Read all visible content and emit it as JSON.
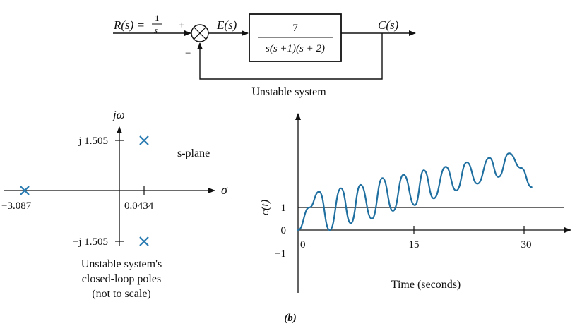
{
  "block_diagram": {
    "input_label": "R(s) =",
    "input_frac_num": "1",
    "input_frac_den": "s",
    "plus_sign": "+",
    "minus_sign": "−",
    "error_label": "E(s)",
    "tf_numerator": "7",
    "tf_denominator": "s(s +1)(s + 2)",
    "output_label": "C(s)",
    "caption": "Unstable system"
  },
  "s_plane": {
    "axis_imag_label": "jω",
    "axis_real_label": "σ",
    "plane_label": "s-plane",
    "tick_upper": "j 1.505",
    "tick_lower": "−j 1.505",
    "tick_left": "−3.087",
    "tick_right": "0.0434",
    "caption_line1": "Unstable system's",
    "caption_line2": "closed-loop poles",
    "caption_line3": "(not to scale)",
    "poles": [
      {
        "re": -3.087,
        "im": 0
      },
      {
        "re": 0.0434,
        "im": 1.505
      },
      {
        "re": 0.0434,
        "im": -1.505
      }
    ],
    "marker_color": "#2a7bb0"
  },
  "response": {
    "ylabel": "c(t)",
    "xlabel": "Time (seconds)",
    "y_ticks": [
      "1",
      "0",
      "−1"
    ],
    "x_ticks": [
      "0",
      "15",
      "30"
    ],
    "line_color": "#1f6fa0"
  },
  "figure_label": "(b)",
  "chart_data": {
    "type": "line",
    "title": "",
    "xlabel": "Time (seconds)",
    "ylabel": "c(t)",
    "xlim": [
      0,
      31
    ],
    "xticks": [
      0,
      15,
      30
    ],
    "yticks": [
      1,
      0,
      -1
    ],
    "series": [
      {
        "x": [
          0,
          1.5,
          2.8,
          4.2,
          5.7,
          7.0,
          8.3,
          9.8,
          11.2,
          12.6,
          14.0,
          15.5,
          16.7,
          18.0,
          19.6,
          21.0,
          22.4,
          23.8,
          25.4,
          26.6,
          28.0,
          29.6,
          31.0
        ],
        "y": [
          0,
          1.0,
          1.7,
          0.0,
          1.85,
          0.3,
          2.0,
          0.5,
          2.3,
          0.85,
          2.45,
          1.1,
          2.65,
          1.4,
          2.8,
          1.75,
          3.0,
          2.05,
          3.2,
          2.35,
          3.4,
          2.75,
          1.9
        ]
      }
    ]
  }
}
